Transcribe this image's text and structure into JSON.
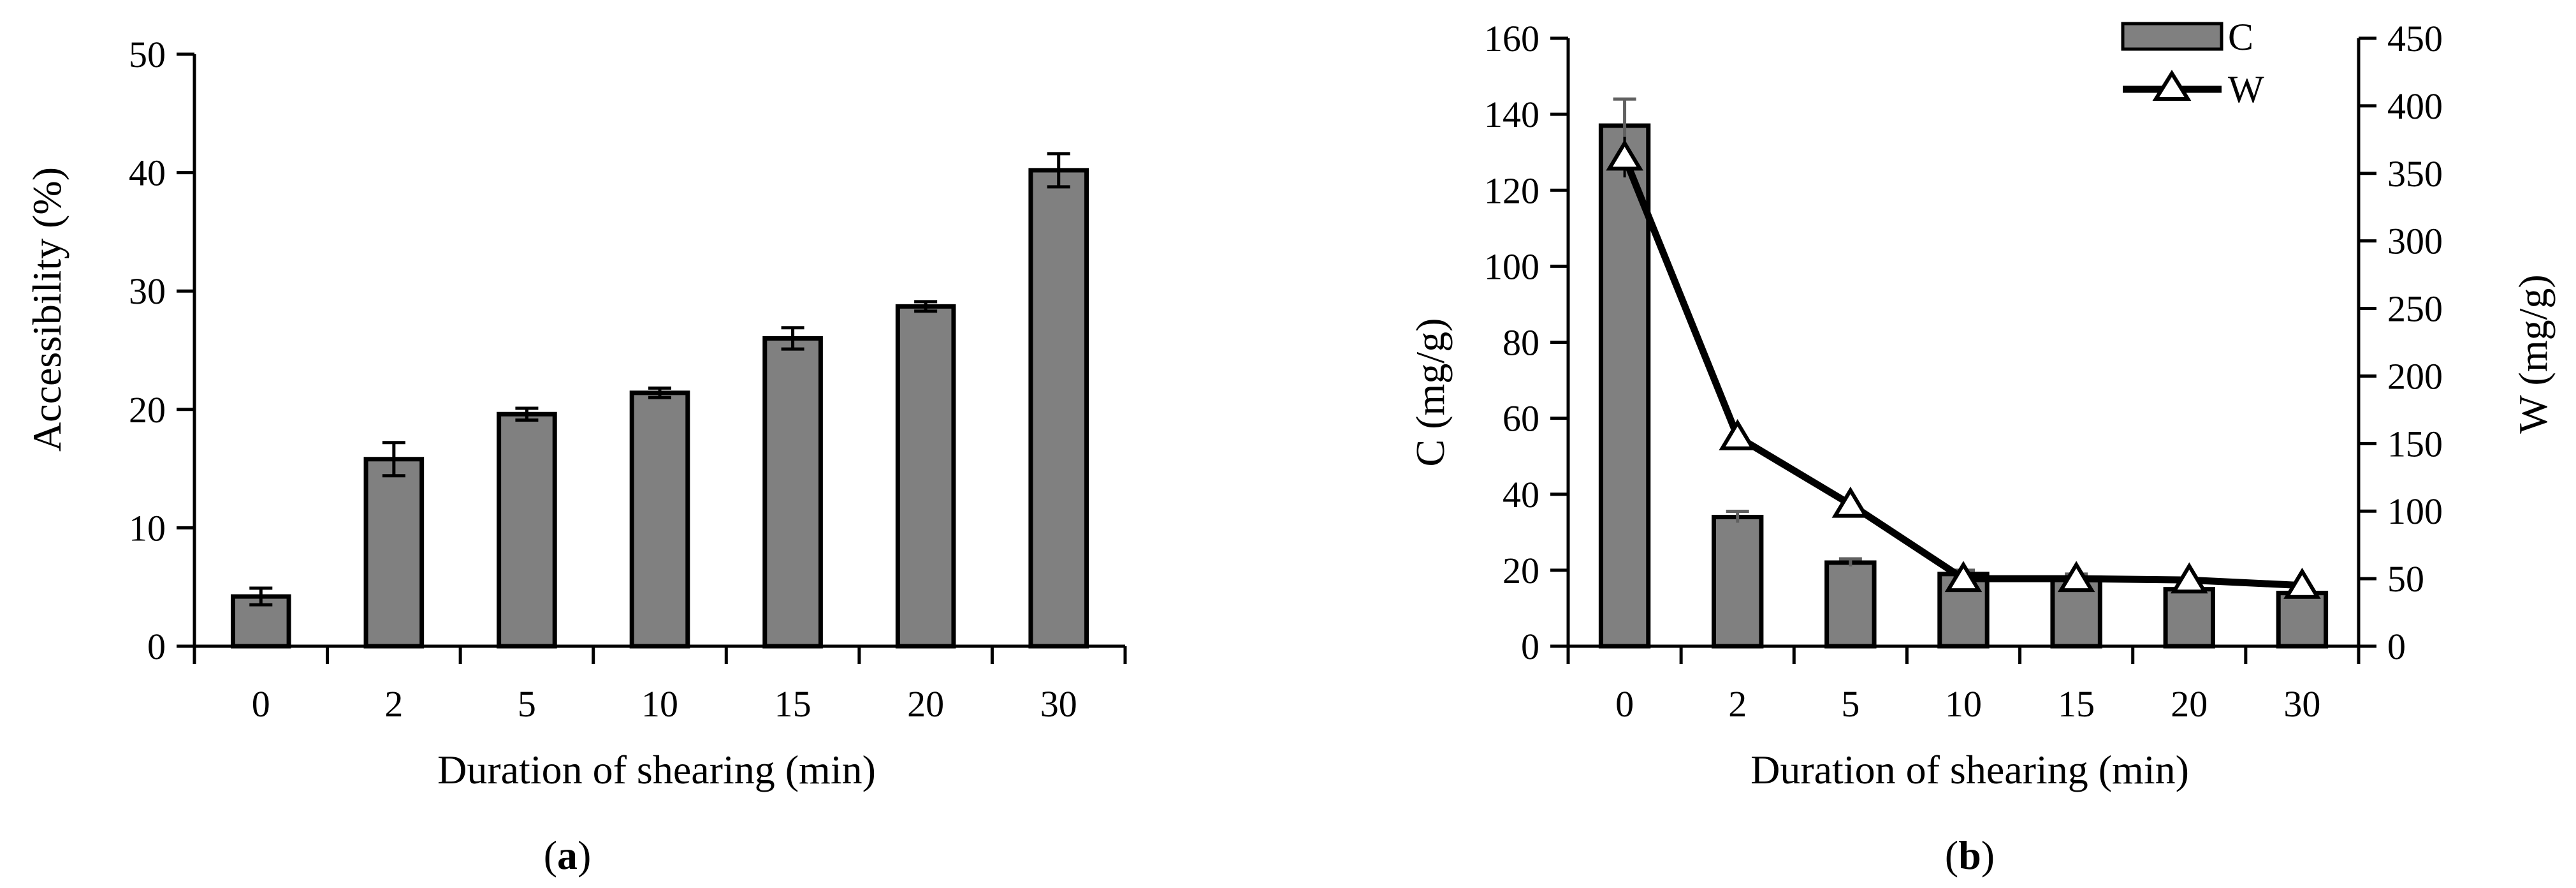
{
  "figure": {
    "panel_a_label": "(a)",
    "panel_a_label_parts": [
      "(",
      "a",
      ")"
    ],
    "panel_b_label": "(b)",
    "panel_b_label_parts": [
      "(",
      "b",
      ")"
    ]
  },
  "chart_data": [
    {
      "type": "bar",
      "panel": "a",
      "categories": [
        "0",
        "2",
        "5",
        "10",
        "15",
        "20",
        "30"
      ],
      "series": [
        {
          "values": [
            4.2,
            15.8,
            19.6,
            21.4,
            26.0,
            28.7,
            40.2
          ],
          "errors": [
            0.7,
            1.4,
            0.5,
            0.4,
            0.9,
            0.4,
            1.4
          ]
        }
      ],
      "xlabel": "Duration of shearing (min)",
      "ylabel": "Accessibility (%)",
      "ylim": [
        0,
        50
      ],
      "yticks": [
        "0",
        "10",
        "20",
        "30",
        "40",
        "50"
      ],
      "grid": false,
      "colors": {
        "bar": "#808080",
        "outline": "#000000"
      }
    },
    {
      "type": "bar",
      "panel": "b",
      "categories": [
        "0",
        "2",
        "5",
        "10",
        "15",
        "20",
        "30"
      ],
      "series": [
        {
          "name": "C",
          "type": "bar",
          "axis": "left",
          "values": [
            137,
            34,
            22,
            19,
            18,
            15,
            14
          ],
          "errors": [
            7,
            1.5,
            1,
            1,
            1,
            0.5,
            0.5
          ]
        },
        {
          "name": "W",
          "type": "line",
          "axis": "right",
          "values": [
            362,
            155,
            105,
            50,
            50,
            49,
            45
          ],
          "errors": [
            15,
            6,
            4,
            3,
            2,
            2,
            2
          ]
        }
      ],
      "xlabel": "Duration of shearing (min)",
      "ylabel": "C (mg/g)",
      "y2label": "W (mg/g)",
      "ylim": [
        0,
        160
      ],
      "y2lim": [
        0,
        450
      ],
      "yticks": [
        "0",
        "20",
        "40",
        "60",
        "80",
        "100",
        "120",
        "140",
        "160"
      ],
      "y2ticks": [
        "0",
        "50",
        "100",
        "150",
        "200",
        "250",
        "300",
        "350",
        "400",
        "450"
      ],
      "legend": "top-right",
      "grid": false,
      "colors": {
        "bar": "#808080",
        "outline": "#000000",
        "line": "#000000",
        "marker_fill": "#ffffff"
      }
    }
  ]
}
